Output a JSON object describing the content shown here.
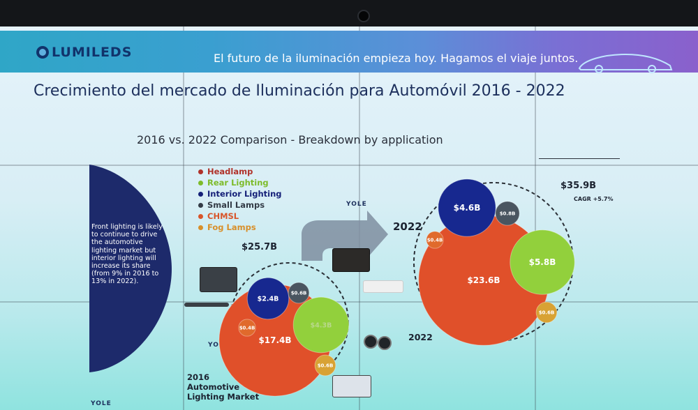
{
  "brand": {
    "logo_text": "LUMILEDS",
    "tagline": "El futuro de la iluminación empieza hoy. Hagamos el viaje juntos."
  },
  "slide": {
    "title": "Crecimiento del mercado de Iluminación para Automóvil 2016 - 2022",
    "subtitle": "2016 vs. 2022 Comparison - Breakdown by application",
    "note": "Front lighting is likely to continue to drive the automotive lighting market but interior lighting will increase its share (from 9% in 2016 to 13% in 2022).",
    "chart_caption": "2016 Automotive Lighting Market",
    "yole_logo": "YOLE",
    "arrow_label": "2022",
    "year_label_2022": "2022"
  },
  "colors": {
    "Headlamp": "#e0502a",
    "Rear Lighting": "#92d03c",
    "Interior Lighting": "#17288f",
    "Small Lamps": "#4a5560",
    "CHMSL": "#e06a2c",
    "Fog Lamps": "#d8a234",
    "legend_text": [
      "#b0322a",
      "#7dbb2a",
      "#152078",
      "#333b46",
      "#d8552a",
      "#d88f2a"
    ]
  },
  "chart_data": {
    "type": "bubble",
    "title": "2016 vs. 2022 Comparison - Breakdown by application",
    "legend": [
      "Headlamp",
      "Rear Lighting",
      "Interior Lighting",
      "Small Lamps",
      "CHMSL",
      "Fog Lamps"
    ],
    "series": [
      {
        "name": "2016",
        "total_label": "$25.7B",
        "total": 25.7,
        "values": {
          "Headlamp": 17.4,
          "Rear Lighting": 4.3,
          "Interior Lighting": 2.4,
          "Small Lamps": 0.6,
          "CHMSL": 0.4,
          "Fog Lamps": 0.6
        },
        "labels": {
          "Headlamp": "$17.4B",
          "Rear Lighting": "$4.3B",
          "Interior Lighting": "$2.4B",
          "Small Lamps": "$0.6B",
          "CHMSL": "$0.4B",
          "Fog Lamps": "$0.6B"
        }
      },
      {
        "name": "2022",
        "total_label": "$35.9B",
        "total": 35.9,
        "cagr": "CAGR +5.7%",
        "values": {
          "Headlamp": 23.6,
          "Rear Lighting": 5.8,
          "Interior Lighting": 4.6,
          "Small Lamps": 0.8,
          "CHMSL": 0.4,
          "Fog Lamps": 0.6
        },
        "labels": {
          "Headlamp": "$23.6B",
          "Rear Lighting": "$5.8B",
          "Interior Lighting": "$4.6B",
          "Small Lamps": "$0.8B",
          "CHMSL": "$0.4B",
          "Fog Lamps": "$0.6B"
        }
      }
    ]
  }
}
